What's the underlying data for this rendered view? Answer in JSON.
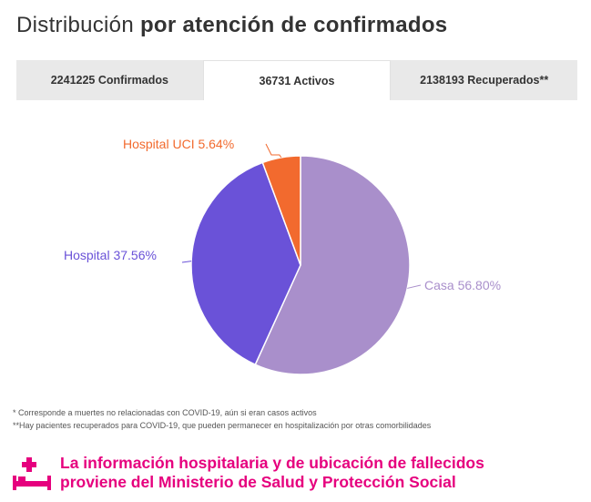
{
  "header": {
    "title_light": "Distribución",
    "title_bold": "por atención de confirmados"
  },
  "tabs": [
    {
      "label": "2241225 Confirmados",
      "active": false
    },
    {
      "label": "36731 Activos",
      "active": true
    },
    {
      "label": "2138193 Recuperados**",
      "active": false
    }
  ],
  "chart_data": {
    "type": "pie",
    "slices": [
      {
        "label": "Casa 56.80%",
        "value": 56.8,
        "color": "#a98fcb"
      },
      {
        "label": "Hospital 37.56%",
        "value": 37.56,
        "color": "#6a52d8"
      },
      {
        "label": "Hospital UCI 5.64%",
        "value": 5.64,
        "color": "#f26a2e"
      }
    ]
  },
  "footnotes": [
    "* Corresponde a muertes no relacionadas con COVID-19, aún si eran casos activos",
    "**Hay pacientes recuperados para COVID-19, que pueden permanecer en hospitalización por otras comorbilidades"
  ],
  "info_note": {
    "line1": "La información hospitalaria y de ubicación de fallecidos",
    "line2": "proviene del Ministerio de Salud y Protección Social",
    "icon": "hospital-bed-icon",
    "color": "#e6007e"
  }
}
